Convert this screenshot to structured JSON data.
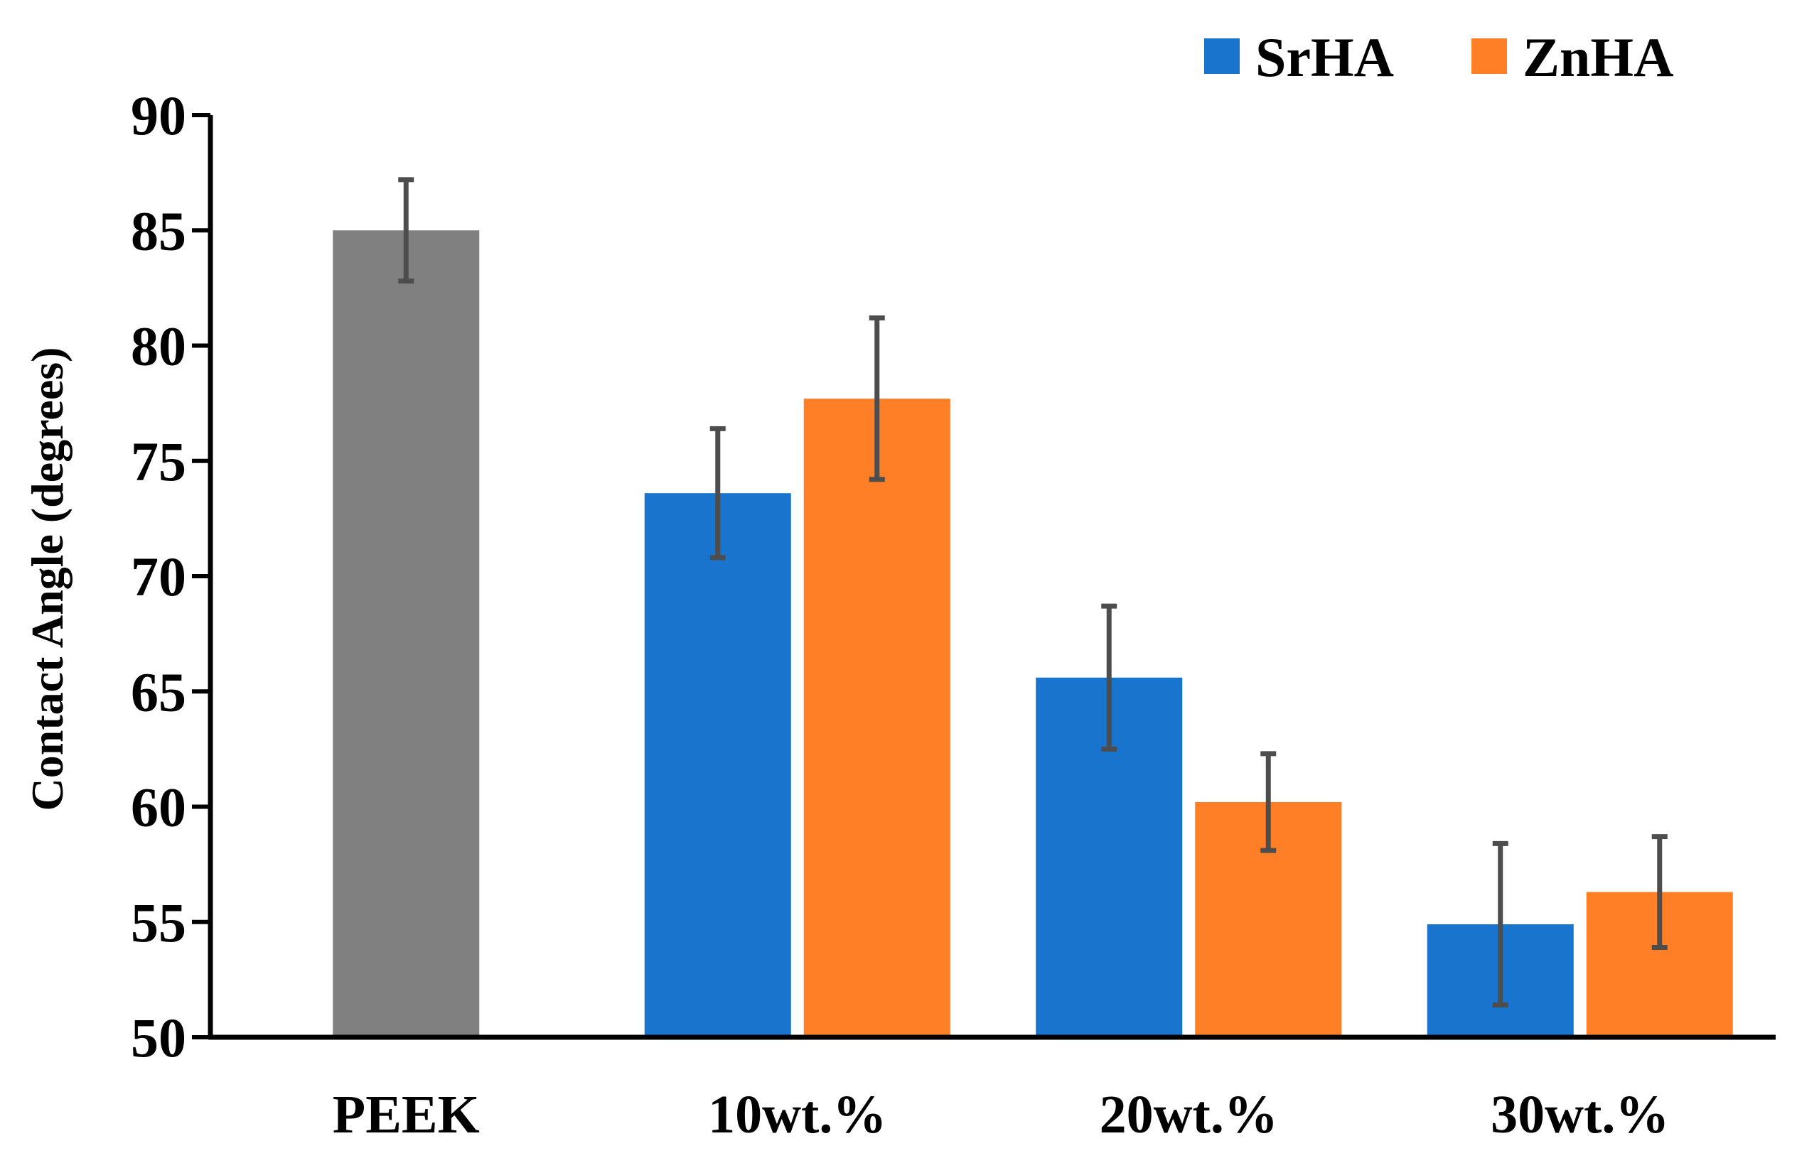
{
  "chart_data": {
    "type": "bar",
    "title": "",
    "xlabel": "",
    "ylabel": "Contact Angle (degrees)",
    "ylim": [
      50,
      90
    ],
    "yticks": [
      50,
      55,
      60,
      65,
      70,
      75,
      80,
      85,
      90
    ],
    "grid": false,
    "legend_position": "top-right",
    "categories": [
      "PEEK",
      "10wt.%",
      "20wt.%",
      "30wt.%"
    ],
    "series": [
      {
        "name": "PEEK",
        "show_in_legend": false,
        "color": "#808080",
        "values": [
          85.0,
          null,
          null,
          null
        ],
        "errors": [
          2.2,
          null,
          null,
          null
        ]
      },
      {
        "name": "SrHA",
        "show_in_legend": true,
        "color": "#1874CD",
        "values": [
          null,
          73.6,
          65.6,
          54.9
        ],
        "errors": [
          null,
          2.8,
          3.1,
          3.5
        ]
      },
      {
        "name": "ZnHA",
        "show_in_legend": true,
        "color": "#FF7F27",
        "values": [
          null,
          77.7,
          60.2,
          56.3
        ],
        "errors": [
          null,
          3.5,
          2.1,
          2.4
        ]
      }
    ],
    "error_bar_color": "#4D4D4D"
  }
}
